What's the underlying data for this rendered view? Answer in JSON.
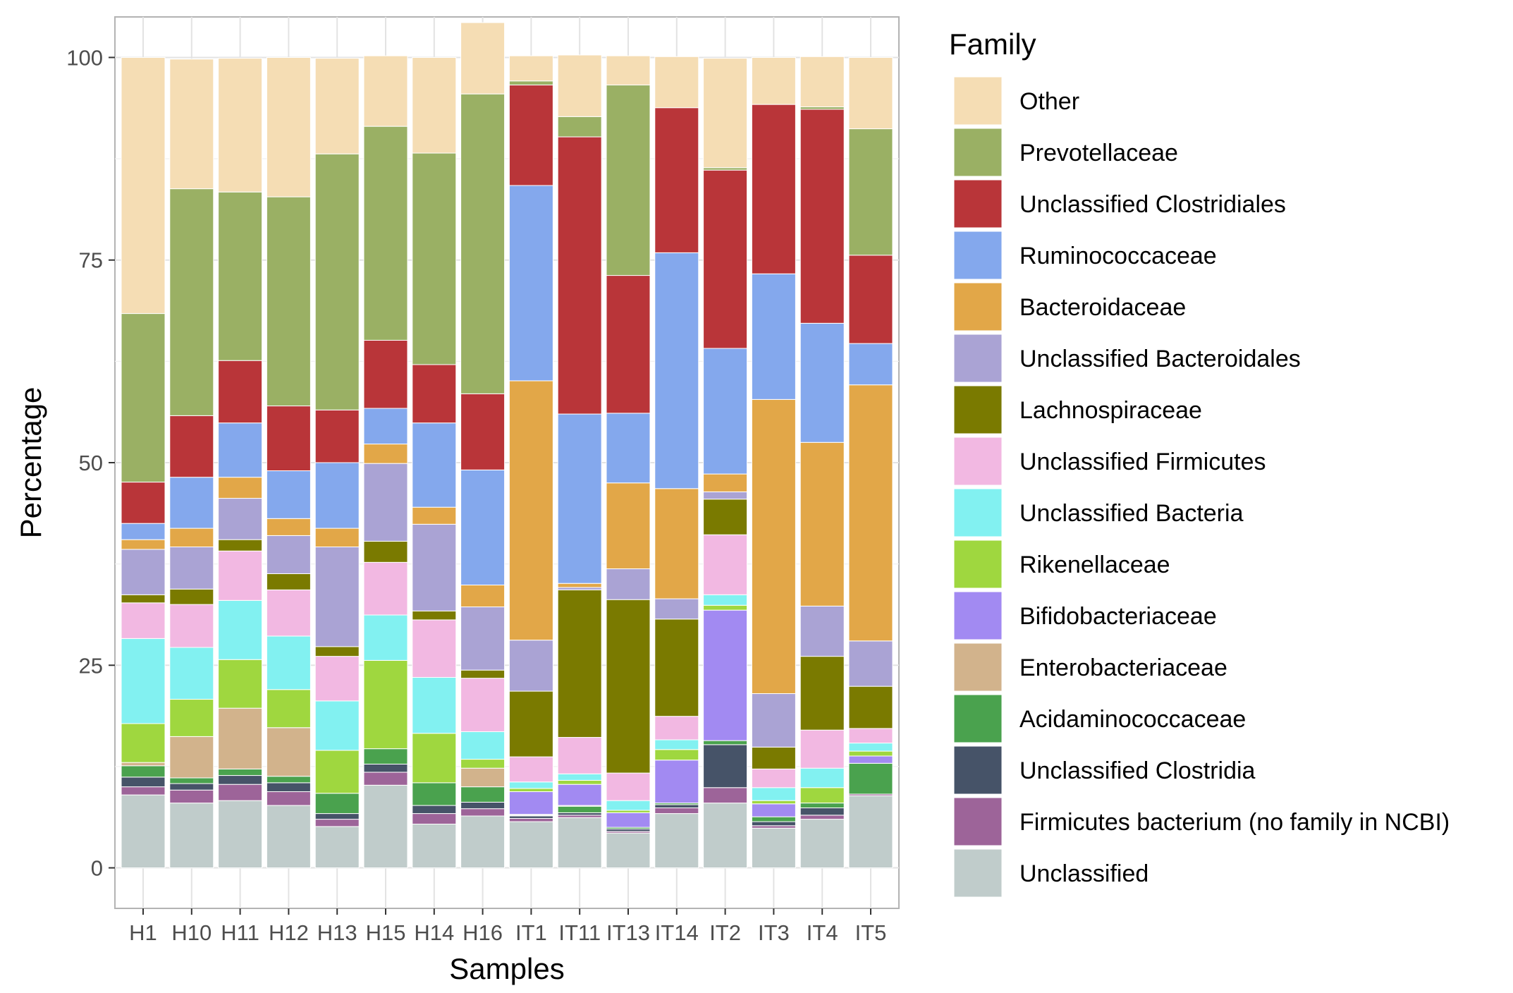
{
  "chart_data": {
    "type": "bar",
    "stacked": true,
    "title": "",
    "xlabel": "Samples",
    "ylabel": "Percentage",
    "ylim": [
      -5,
      105
    ],
    "yticks": [
      0,
      25,
      50,
      75,
      100
    ],
    "grid": true,
    "legend_placement": "right",
    "legend_title": "Family",
    "categories": [
      "H1",
      "H10",
      "H11",
      "H12",
      "H13",
      "H15",
      "H14",
      "H16",
      "IT1",
      "IT11",
      "IT13",
      "IT14",
      "IT2",
      "IT3",
      "IT4",
      "IT5"
    ],
    "series": [
      {
        "name": "Unclassified",
        "color": "#c0cccb",
        "values": [
          9.0,
          8.0,
          8.3,
          7.7,
          5.1,
          10.2,
          5.4,
          6.4,
          5.7,
          6.2,
          4.3,
          6.7,
          8.0,
          4.9,
          6.0,
          8.9
        ]
      },
      {
        "name": "Firmicutes bacterium (no family in NCBI)",
        "color": "#9d6499",
        "values": [
          1.0,
          1.6,
          2.0,
          1.7,
          0.9,
          1.6,
          1.3,
          0.9,
          0.4,
          0.3,
          0.2,
          0.7,
          1.9,
          0.3,
          0.5,
          0.2
        ]
      },
      {
        "name": "Unclassified Clostridia",
        "color": "#465368",
        "values": [
          1.2,
          0.8,
          1.1,
          1.1,
          0.7,
          1.0,
          1.0,
          0.8,
          0.3,
          0.3,
          0.3,
          0.4,
          5.3,
          0.5,
          0.9,
          0.0
        ]
      },
      {
        "name": "Acidaminococcaceae",
        "color": "#4aa24e",
        "values": [
          1.4,
          0.7,
          0.8,
          0.8,
          2.5,
          1.9,
          2.8,
          1.9,
          0.1,
          0.8,
          0.2,
          0.2,
          0.5,
          0.6,
          0.6,
          3.8
        ]
      },
      {
        "name": "Enterobacteriaceae",
        "color": "#d2b38c",
        "values": [
          0.4,
          5.1,
          7.5,
          6.0,
          0.0,
          0.0,
          0.0,
          2.3,
          0.1,
          0.1,
          0.0,
          0.0,
          0.0,
          0.0,
          0.0,
          0.0
        ]
      },
      {
        "name": "Bifidobacteriaceae",
        "color": "#a28af2",
        "values": [
          0.0,
          0.0,
          0.0,
          0.0,
          0.0,
          0.0,
          0.0,
          0.0,
          2.8,
          2.6,
          1.8,
          5.3,
          16.1,
          1.6,
          0.0,
          0.9
        ]
      },
      {
        "name": "Rikenellaceae",
        "color": "#9fd73f",
        "values": [
          4.8,
          4.6,
          6.0,
          4.7,
          5.3,
          10.9,
          6.1,
          1.1,
          0.4,
          0.5,
          0.3,
          1.3,
          0.6,
          0.4,
          1.9,
          0.6
        ]
      },
      {
        "name": "Unclassified Bacteria",
        "color": "#82f1f1",
        "values": [
          10.5,
          6.4,
          7.3,
          6.6,
          6.1,
          5.6,
          6.9,
          3.4,
          0.8,
          0.8,
          1.2,
          1.2,
          1.3,
          1.6,
          2.4,
          1.0
        ]
      },
      {
        "name": "Unclassified Firmicutes",
        "color": "#f2b8e2",
        "values": [
          4.4,
          5.3,
          6.1,
          5.7,
          5.5,
          6.5,
          7.1,
          6.6,
          3.1,
          4.5,
          3.4,
          2.9,
          7.4,
          2.3,
          4.7,
          1.8
        ]
      },
      {
        "name": "Lachnospiraceae",
        "color": "#7a7a00",
        "values": [
          1.0,
          1.9,
          1.4,
          2.0,
          1.2,
          2.6,
          1.1,
          1.0,
          8.1,
          18.2,
          21.4,
          12.0,
          4.4,
          2.7,
          9.1,
          5.2
        ]
      },
      {
        "name": "Unclassified Bacteroidales",
        "color": "#aaa3d4",
        "values": [
          5.6,
          5.2,
          5.1,
          4.7,
          12.3,
          9.6,
          10.7,
          7.8,
          6.3,
          0.3,
          3.8,
          2.5,
          0.9,
          6.6,
          6.2,
          5.6
        ]
      },
      {
        "name": "Bacteroidaceae",
        "color": "#e2a748",
        "values": [
          1.2,
          2.3,
          2.6,
          2.1,
          2.3,
          2.4,
          2.1,
          2.7,
          32.0,
          0.5,
          10.6,
          13.6,
          2.2,
          36.3,
          20.2,
          31.6
        ]
      },
      {
        "name": "Ruminococcaceae",
        "color": "#84a8ed",
        "values": [
          2.0,
          6.3,
          6.7,
          5.9,
          8.1,
          4.4,
          10.4,
          14.2,
          24.1,
          20.9,
          8.6,
          29.1,
          15.5,
          15.5,
          14.7,
          5.1
        ]
      },
      {
        "name": "Unclassified Clostridiales",
        "color": "#b93539",
        "values": [
          5.1,
          7.6,
          7.7,
          8.0,
          6.5,
          8.4,
          7.2,
          9.4,
          12.4,
          34.2,
          17.0,
          17.9,
          22.0,
          20.9,
          26.4,
          10.9
        ]
      },
      {
        "name": "Prevotellaceae",
        "color": "#9ab064",
        "values": [
          20.8,
          28.0,
          20.8,
          25.8,
          31.6,
          26.4,
          26.1,
          37.0,
          0.5,
          2.5,
          23.5,
          0.0,
          0.3,
          0.0,
          0.3,
          15.6
        ]
      },
      {
        "name": "Other",
        "color": "#f5ddb4",
        "values": [
          31.6,
          16.0,
          16.5,
          17.2,
          11.8,
          8.7,
          11.8,
          8.8,
          3.1,
          7.6,
          3.6,
          6.3,
          13.5,
          5.8,
          6.2,
          8.8
        ]
      }
    ]
  }
}
